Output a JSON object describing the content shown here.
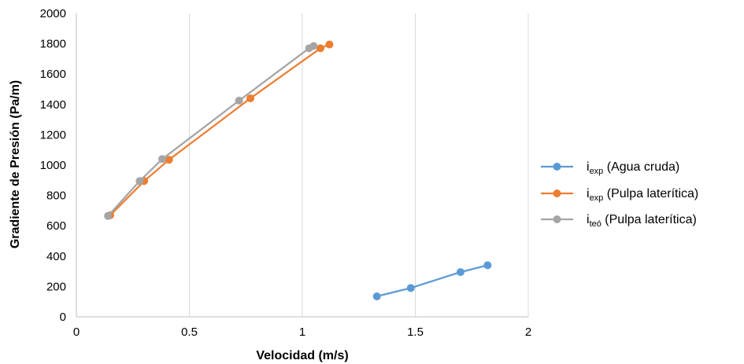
{
  "chart_data": {
    "type": "scatter",
    "xlabel": "Velocidad (m/s)",
    "ylabel": "Gradiente de Presión (Pa/m)",
    "xlim": [
      0,
      2
    ],
    "ylim": [
      0,
      2000
    ],
    "x_ticks": [
      "0",
      "0.5",
      "1",
      "1.5",
      "2"
    ],
    "y_ticks": [
      "0",
      "200",
      "400",
      "600",
      "800",
      "1000",
      "1200",
      "1400",
      "1600",
      "1800",
      "2000"
    ],
    "grid": "vertical",
    "legend_position": "right",
    "series": [
      {
        "name": "iexp (Agua cruda)",
        "legend_main": "i",
        "legend_sub": "exp",
        "legend_rest": " (Agua cruda)",
        "color": "#5b9bd5",
        "x": [
          1.33,
          1.48,
          1.7,
          1.82
        ],
        "y": [
          135,
          190,
          295,
          340
        ]
      },
      {
        "name": "iexp (Pulpa laterítica)",
        "legend_main": "i",
        "legend_sub": "exp",
        "legend_rest": " (Pulpa laterítica)",
        "color": "#ed7d31",
        "x": [
          0.15,
          0.3,
          0.41,
          0.77,
          1.08,
          1.12
        ],
        "y": [
          670,
          895,
          1035,
          1440,
          1770,
          1795
        ]
      },
      {
        "name": "iteó (Pulpa laterítica)",
        "legend_main": "i",
        "legend_sub": "teó",
        "legend_rest": " (Pulpa laterítica)",
        "color": "#a5a5a5",
        "x": [
          0.14,
          0.28,
          0.38,
          0.72,
          1.03,
          1.05
        ],
        "y": [
          665,
          895,
          1040,
          1425,
          1770,
          1785
        ]
      }
    ]
  }
}
